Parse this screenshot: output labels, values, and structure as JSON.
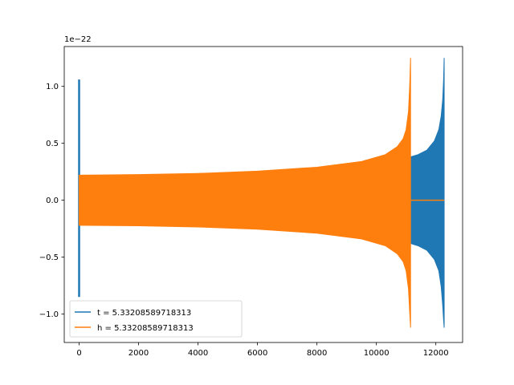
{
  "chart_data": {
    "type": "line",
    "scale_label": "1e−22",
    "xlim": [
      -500,
      12900
    ],
    "ylim": [
      -1.25,
      1.35
    ],
    "grid": false,
    "legend_position": "lower-left",
    "x_ticks": [
      {
        "value": 0,
        "label": "0"
      },
      {
        "value": 2000,
        "label": "2000"
      },
      {
        "value": 4000,
        "label": "4000"
      },
      {
        "value": 6000,
        "label": "6000"
      },
      {
        "value": 8000,
        "label": "8000"
      },
      {
        "value": 10000,
        "label": "10000"
      },
      {
        "value": 12000,
        "label": "12000"
      }
    ],
    "y_ticks": [
      {
        "value": -1.0,
        "label": "−1.0"
      },
      {
        "value": -0.5,
        "label": "−0.5"
      },
      {
        "value": 0.0,
        "label": "0.0"
      },
      {
        "value": 0.5,
        "label": "0.5"
      },
      {
        "value": 1.0,
        "label": "1.0"
      }
    ],
    "series": [
      {
        "name": "t = 5.33208589718313",
        "color": "#1f77b4",
        "spike": {
          "x": 0,
          "ymin": -0.85,
          "ymax": 1.06
        },
        "envelope": {
          "x": [
            11150,
            11400,
            11700,
            11950,
            12100,
            12180,
            12230,
            12260,
            12280
          ],
          "upper": [
            0.38,
            0.4,
            0.44,
            0.52,
            0.62,
            0.74,
            0.88,
            1.05,
            1.25
          ],
          "lower": [
            -0.38,
            -0.4,
            -0.44,
            -0.52,
            -0.62,
            -0.76,
            -0.92,
            -1.05,
            -1.12
          ]
        }
      },
      {
        "name": "h = 5.33208589718313",
        "color": "#ff7f0e",
        "envelope": {
          "x": [
            0,
            2000,
            4000,
            6000,
            8000,
            9500,
            10300,
            10700,
            10900,
            11000,
            11080,
            11120,
            11150
          ],
          "upper": [
            0.22,
            0.225,
            0.235,
            0.255,
            0.29,
            0.34,
            0.4,
            0.47,
            0.54,
            0.62,
            0.78,
            1.0,
            1.25
          ],
          "lower": [
            -0.22,
            -0.225,
            -0.235,
            -0.255,
            -0.29,
            -0.34,
            -0.4,
            -0.47,
            -0.54,
            -0.62,
            -0.78,
            -0.98,
            -1.12
          ]
        },
        "flat": {
          "x": [
            11150,
            12280
          ],
          "y": 0.0
        }
      }
    ]
  }
}
